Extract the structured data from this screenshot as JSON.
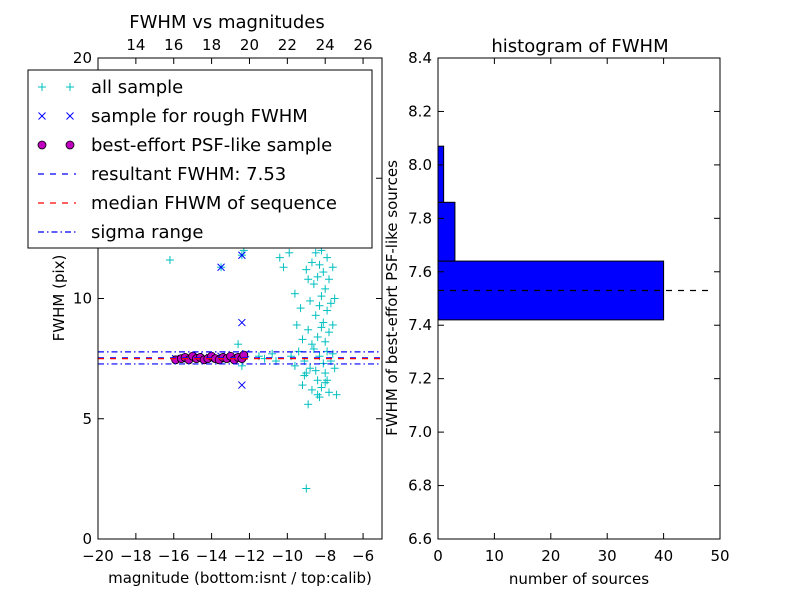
{
  "chart_data": [
    {
      "type": "scatter",
      "title": "FWHM vs magnitudes",
      "xlabel": "magnitude (bottom:isnt / top:calib)",
      "ylabel": "FWHM (pix)",
      "xlim": [
        -20,
        -5
      ],
      "ylim": [
        0,
        20
      ],
      "xticks": [
        "−20",
        "−18",
        "−16",
        "−14",
        "−12",
        "−10",
        "−8",
        "−6"
      ],
      "xtick_values": [
        -20,
        -18,
        -16,
        -14,
        -12,
        -10,
        -8,
        -6
      ],
      "yticks": [
        "0",
        "5",
        "10",
        "15",
        "20"
      ],
      "ytick_values": [
        0,
        5,
        10,
        15,
        20
      ],
      "top_axis": {
        "ticks": [
          "14",
          "16",
          "18",
          "20",
          "22",
          "24",
          "26"
        ],
        "positions_in_bottom_units": [
          -18,
          -16,
          -14,
          -12,
          -10,
          -8,
          -6
        ]
      },
      "grid": false,
      "legend_position": "upper-left",
      "legend": [
        {
          "label": "all sample",
          "marker": "plus",
          "color": "#00bfbf"
        },
        {
          "label": "sample for rough FWHM",
          "marker": "x",
          "color": "#0000ff"
        },
        {
          "label": "best-effort PSF-like sample",
          "marker": "circle",
          "color": "#bf00bf"
        },
        {
          "label": "resultant FWHM: 7.53",
          "marker": "dashed",
          "color": "#0000ff"
        },
        {
          "label": "median FHWM of sequence",
          "marker": "dashed",
          "color": "#ff0000"
        },
        {
          "label": "sigma range",
          "marker": "dashdot",
          "color": "#0000ff"
        }
      ],
      "series": [
        {
          "name": "all sample",
          "marker": "plus",
          "color": "#00bfbf",
          "points": [
            [
              -16.2,
              11.6
            ],
            [
              -13.5,
              11.3
            ],
            [
              -12.4,
              11.8
            ],
            [
              -12.3,
              12.0
            ],
            [
              -12.6,
              8.1
            ],
            [
              -12.4,
              7.2
            ],
            [
              -11.5,
              7.6
            ],
            [
              -11.2,
              7.5
            ],
            [
              -10.8,
              7.7
            ],
            [
              -10.6,
              7.4
            ],
            [
              -10.4,
              11.7
            ],
            [
              -10.2,
              11.3
            ],
            [
              -9.9,
              11.9
            ],
            [
              -9.8,
              7.6
            ],
            [
              -9.6,
              10.2
            ],
            [
              -9.5,
              8.9
            ],
            [
              -9.4,
              7.8
            ],
            [
              -9.3,
              9.6
            ],
            [
              -9.2,
              8.3
            ],
            [
              -9.1,
              7.4
            ],
            [
              -9.0,
              11.2
            ],
            [
              -9.0,
              6.9
            ],
            [
              -8.9,
              10.8
            ],
            [
              -8.9,
              8.7
            ],
            [
              -8.8,
              9.9
            ],
            [
              -8.8,
              7.1
            ],
            [
              -8.7,
              11.5
            ],
            [
              -8.7,
              8.1
            ],
            [
              -8.6,
              10.6
            ],
            [
              -8.6,
              7.9
            ],
            [
              -8.5,
              11.9
            ],
            [
              -8.5,
              9.3
            ],
            [
              -8.5,
              7.0
            ],
            [
              -8.4,
              10.9
            ],
            [
              -8.4,
              8.4
            ],
            [
              -8.4,
              6.6
            ],
            [
              -8.3,
              11.4
            ],
            [
              -8.3,
              9.7
            ],
            [
              -8.3,
              7.6
            ],
            [
              -8.2,
              12.0
            ],
            [
              -8.2,
              10.1
            ],
            [
              -8.2,
              8.8
            ],
            [
              -8.2,
              6.3
            ],
            [
              -8.1,
              11.1
            ],
            [
              -8.1,
              9.0
            ],
            [
              -8.1,
              7.3
            ],
            [
              -8.0,
              10.4
            ],
            [
              -8.0,
              8.2
            ],
            [
              -8.0,
              6.5
            ],
            [
              -7.9,
              11.7
            ],
            [
              -7.9,
              9.5
            ],
            [
              -7.9,
              7.8
            ],
            [
              -7.8,
              10.8
            ],
            [
              -7.8,
              8.6
            ],
            [
              -7.8,
              6.1
            ],
            [
              -7.7,
              9.8
            ],
            [
              -7.7,
              7.4
            ],
            [
              -7.6,
              11.3
            ],
            [
              -7.6,
              8.9
            ],
            [
              -7.5,
              10.0
            ],
            [
              -7.5,
              7.1
            ],
            [
              -7.4,
              6.0
            ],
            [
              -8.3,
              5.9
            ],
            [
              -8.7,
              6.2
            ],
            [
              -9.1,
              6.8
            ],
            [
              -9.6,
              7.2
            ],
            [
              -8.0,
              6.9
            ],
            [
              -7.6,
              7.7
            ],
            [
              -8.9,
              5.6
            ],
            [
              -9.2,
              6.4
            ],
            [
              -8.4,
              6.0
            ],
            [
              -7.9,
              6.6
            ],
            [
              -9.0,
              2.1
            ]
          ]
        },
        {
          "name": "sample for rough FWHM",
          "marker": "x",
          "color": "#0000ff",
          "points": [
            [
              -13.5,
              11.3
            ],
            [
              -12.4,
              11.8
            ],
            [
              -12.4,
              9.0
            ],
            [
              -12.4,
              6.4
            ],
            [
              -15.9,
              7.5
            ],
            [
              -15.6,
              7.5
            ],
            [
              -15.3,
              7.55
            ],
            [
              -15.0,
              7.5
            ],
            [
              -14.7,
              7.6
            ],
            [
              -14.4,
              7.5
            ],
            [
              -14.1,
              7.55
            ],
            [
              -13.8,
              7.5
            ],
            [
              -13.5,
              7.6
            ],
            [
              -13.2,
              7.5
            ],
            [
              -12.9,
              7.55
            ],
            [
              -12.6,
              7.5
            ],
            [
              -12.3,
              7.6
            ],
            [
              -12.2,
              7.7
            ]
          ]
        },
        {
          "name": "best-effort PSF-like sample",
          "marker": "circle",
          "color": "#bf00bf",
          "points": [
            [
              -15.9,
              7.45
            ],
            [
              -15.6,
              7.5
            ],
            [
              -15.4,
              7.55
            ],
            [
              -15.2,
              7.45
            ],
            [
              -15.0,
              7.6
            ],
            [
              -14.8,
              7.5
            ],
            [
              -14.6,
              7.55
            ],
            [
              -14.4,
              7.45
            ],
            [
              -14.2,
              7.5
            ],
            [
              -14.0,
              7.6
            ],
            [
              -13.8,
              7.5
            ],
            [
              -13.6,
              7.45
            ],
            [
              -13.4,
              7.55
            ],
            [
              -13.2,
              7.5
            ],
            [
              -13.0,
              7.6
            ],
            [
              -12.8,
              7.45
            ],
            [
              -12.6,
              7.55
            ],
            [
              -12.4,
              7.5
            ],
            [
              -12.3,
              7.65
            ]
          ]
        }
      ],
      "lines": [
        {
          "name": "resultant FWHM: 7.53",
          "y": 7.53,
          "style": "dashed",
          "color": "#0000ff"
        },
        {
          "name": "median FHWM of sequence",
          "y": 7.5,
          "style": "dashed",
          "color": "#ff0000"
        },
        {
          "name": "sigma range upper",
          "y": 7.78,
          "style": "dashdot",
          "color": "#0000ff"
        },
        {
          "name": "sigma range lower",
          "y": 7.28,
          "style": "dashdot",
          "color": "#0000ff"
        }
      ]
    },
    {
      "type": "bar",
      "orientation": "horizontal",
      "title": "histogram of FWHM",
      "xlabel": "number of sources",
      "ylabel": "FWHM of best-effort PSF-like sources",
      "xlim": [
        0,
        50
      ],
      "ylim": [
        6.6,
        8.4
      ],
      "xticks": [
        "0",
        "10",
        "20",
        "30",
        "40",
        "50"
      ],
      "xtick_values": [
        0,
        10,
        20,
        30,
        40,
        50
      ],
      "yticks": [
        "6.6",
        "6.8",
        "7.0",
        "7.2",
        "7.4",
        "7.6",
        "7.8",
        "8.0",
        "8.2",
        "8.4"
      ],
      "ytick_values": [
        6.6,
        6.8,
        7.0,
        7.2,
        7.4,
        7.6,
        7.8,
        8.0,
        8.2,
        8.4
      ],
      "grid": false,
      "bar_color": "#0000ff",
      "bins": [
        {
          "lo": 7.42,
          "hi": 7.64,
          "count": 40
        },
        {
          "lo": 7.64,
          "hi": 7.86,
          "count": 3
        },
        {
          "lo": 7.86,
          "hi": 8.07,
          "count": 1
        }
      ],
      "reference_line": {
        "y": 7.53,
        "style": "dashed",
        "color": "#000000"
      }
    }
  ]
}
